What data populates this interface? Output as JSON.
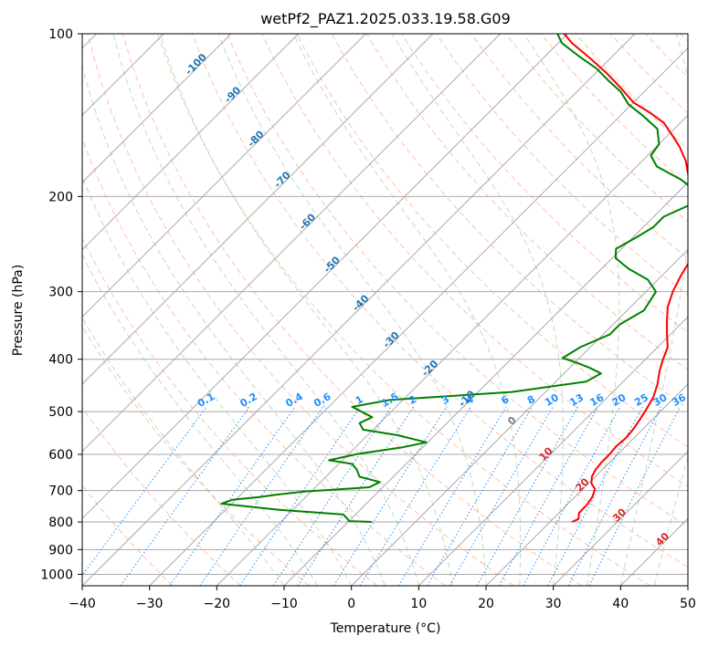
{
  "chart_data": {
    "type": "line",
    "title": "wetPf2_PAZ1.2025.033.19.58.G09",
    "xlabel": "Temperature (°C)",
    "ylabel": "Pressure (hPa)",
    "xlim": [
      -40,
      50
    ],
    "ylim": [
      1050,
      100
    ],
    "y_scale": "log",
    "grid": true,
    "x_ticks": [
      -40,
      -30,
      -20,
      -10,
      0,
      10,
      20,
      30,
      40,
      50
    ],
    "y_ticks": [
      100,
      200,
      300,
      400,
      500,
      600,
      700,
      800,
      900,
      1000
    ],
    "skew": "skew-T",
    "colors": {
      "temperature": "#ff0000",
      "dewpoint": "#008000",
      "dry_adiabat": "#ffa07a",
      "moist_adiabat": "#8fbc8f",
      "mixing_ratio": "#1e90ff",
      "isotherm_label": "#1f77b4",
      "grid": "#a9a9a9"
    },
    "series": [
      {
        "name": "",
        "color": "#ff0000",
        "points": [
          {
            "t": 23.3,
            "p": 800
          },
          {
            "t": 23.8,
            "p": 790
          },
          {
            "t": 23.0,
            "p": 770
          },
          {
            "t": 22.9,
            "p": 740
          },
          {
            "t": 22.6,
            "p": 720
          },
          {
            "t": 21.8,
            "p": 695
          },
          {
            "t": 20.5,
            "p": 680
          },
          {
            "t": 19.5,
            "p": 660
          },
          {
            "t": 19.0,
            "p": 640
          },
          {
            "t": 18.8,
            "p": 620
          },
          {
            "t": 18.8,
            "p": 600
          },
          {
            "t": 18.6,
            "p": 580
          },
          {
            "t": 18.8,
            "p": 560
          },
          {
            "t": 18.6,
            "p": 540
          },
          {
            "t": 18.2,
            "p": 520
          },
          {
            "t": 17.7,
            "p": 500
          },
          {
            "t": 16.8,
            "p": 470
          },
          {
            "t": 15.5,
            "p": 445
          },
          {
            "t": 13.8,
            "p": 420
          },
          {
            "t": 12.6,
            "p": 400
          },
          {
            "t": 11.5,
            "p": 380
          },
          {
            "t": 9.5,
            "p": 360
          },
          {
            "t": 7.5,
            "p": 340
          },
          {
            "t": 5.5,
            "p": 320
          },
          {
            "t": 4.0,
            "p": 300
          },
          {
            "t": 2.8,
            "p": 280
          },
          {
            "t": 1.8,
            "p": 260
          },
          {
            "t": 0.0,
            "p": 245
          },
          {
            "t": -2.0,
            "p": 230
          },
          {
            "t": -4.5,
            "p": 215
          },
          {
            "t": -7.5,
            "p": 200
          },
          {
            "t": -10.5,
            "p": 185
          },
          {
            "t": -13.5,
            "p": 172
          },
          {
            "t": -16.5,
            "p": 162
          },
          {
            "t": -19.0,
            "p": 155
          },
          {
            "t": -22.5,
            "p": 146
          },
          {
            "t": -26.0,
            "p": 140
          },
          {
            "t": -30.0,
            "p": 134
          },
          {
            "t": -34.0,
            "p": 126
          },
          {
            "t": -38.5,
            "p": 118
          },
          {
            "t": -43.0,
            "p": 111
          },
          {
            "t": -48.0,
            "p": 104
          },
          {
            "t": -50.5,
            "p": 100
          }
        ]
      },
      {
        "name": "",
        "color": "#008000",
        "points": [
          {
            "t": -6.5,
            "p": 800
          },
          {
            "t": -10.0,
            "p": 797
          },
          {
            "t": -10.5,
            "p": 790
          },
          {
            "t": -11.8,
            "p": 775
          },
          {
            "t": -22.0,
            "p": 760
          },
          {
            "t": -31.5,
            "p": 740
          },
          {
            "t": -30.5,
            "p": 728
          },
          {
            "t": -27.0,
            "p": 720
          },
          {
            "t": -24.5,
            "p": 712
          },
          {
            "t": -21.0,
            "p": 703
          },
          {
            "t": -12.0,
            "p": 690
          },
          {
            "t": -11.2,
            "p": 675
          },
          {
            "t": -15.0,
            "p": 660
          },
          {
            "t": -16.5,
            "p": 640
          },
          {
            "t": -18.0,
            "p": 625
          },
          {
            "t": -22.0,
            "p": 615
          },
          {
            "t": -18.5,
            "p": 598
          },
          {
            "t": -13.0,
            "p": 582
          },
          {
            "t": -10.2,
            "p": 570
          },
          {
            "t": -15.5,
            "p": 553
          },
          {
            "t": -21.5,
            "p": 540
          },
          {
            "t": -23.0,
            "p": 525
          },
          {
            "t": -22.0,
            "p": 512
          },
          {
            "t": -26.5,
            "p": 490
          },
          {
            "t": -22.0,
            "p": 476
          },
          {
            "t": -5.0,
            "p": 460
          },
          {
            "t": 4.5,
            "p": 440
          },
          {
            "t": 5.5,
            "p": 425
          },
          {
            "t": 3.0,
            "p": 415
          },
          {
            "t": 0.0,
            "p": 405
          },
          {
            "t": -2.5,
            "p": 398
          },
          {
            "t": -1.5,
            "p": 380
          },
          {
            "t": 1.0,
            "p": 360
          },
          {
            "t": 1.0,
            "p": 345
          },
          {
            "t": 2.5,
            "p": 325
          },
          {
            "t": 1.5,
            "p": 300
          },
          {
            "t": -1.5,
            "p": 285
          },
          {
            "t": -6.0,
            "p": 272
          },
          {
            "t": -9.5,
            "p": 260
          },
          {
            "t": -10.8,
            "p": 250
          },
          {
            "t": -9.5,
            "p": 238
          },
          {
            "t": -8.5,
            "p": 228
          },
          {
            "t": -8.5,
            "p": 218
          },
          {
            "t": -6.5,
            "p": 208
          },
          {
            "t": -6.5,
            "p": 198
          },
          {
            "t": -11.5,
            "p": 186
          },
          {
            "t": -17.0,
            "p": 176
          },
          {
            "t": -19.5,
            "p": 168
          },
          {
            "t": -20.0,
            "p": 160
          },
          {
            "t": -22.5,
            "p": 150
          },
          {
            "t": -26.5,
            "p": 142
          },
          {
            "t": -30.5,
            "p": 135
          },
          {
            "t": -33.5,
            "p": 128
          },
          {
            "t": -37.0,
            "p": 122
          },
          {
            "t": -40.5,
            "p": 116
          },
          {
            "t": -45.0,
            "p": 110
          },
          {
            "t": -49.5,
            "p": 104
          },
          {
            "t": -51.5,
            "p": 100
          }
        ]
      }
    ],
    "isotherm_labels": [
      {
        "text": "-100",
        "t": -100,
        "p": 115
      },
      {
        "text": "-90",
        "t": -90,
        "p": 131
      },
      {
        "text": "-80",
        "t": -80,
        "p": 158
      },
      {
        "text": "-70",
        "t": -70,
        "p": 188
      },
      {
        "text": "-60",
        "t": -60,
        "p": 225
      },
      {
        "text": "-50",
        "t": -50,
        "p": 270
      },
      {
        "text": "-40",
        "t": -40,
        "p": 318
      },
      {
        "text": "-30",
        "t": -30,
        "p": 372
      },
      {
        "text": "-20",
        "t": -20,
        "p": 420
      },
      {
        "text": "-10",
        "t": -10,
        "p": 478
      }
    ],
    "mixing_ratio_labels": [
      "0.1",
      "0.2",
      "0.4",
      "0.6",
      "1",
      "1.5",
      "2",
      "3",
      "4",
      "6",
      "8",
      "10",
      "13",
      "16",
      "20",
      "25",
      "30",
      "36"
    ],
    "mixing_ratio_label_pressure": 485,
    "isotherm_marker_labels": [
      {
        "text": "0",
        "t": 0,
        "p": 525,
        "color": "#808080"
      },
      {
        "text": "10",
        "t": 10,
        "p": 605,
        "color": "#d62728"
      },
      {
        "text": "20",
        "t": 20,
        "p": 690,
        "color": "#d62728"
      },
      {
        "text": "30",
        "t": 30,
        "p": 785,
        "color": "#d62728"
      },
      {
        "text": "40",
        "t": 40,
        "p": 870,
        "color": "#d62728"
      }
    ]
  }
}
